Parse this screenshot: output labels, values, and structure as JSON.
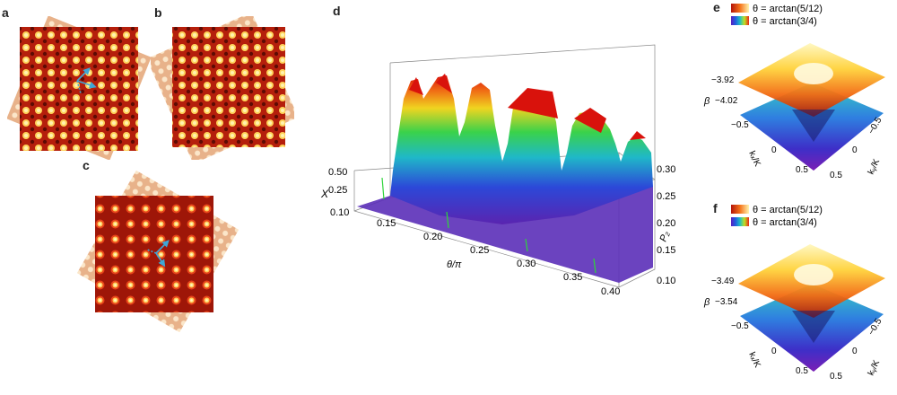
{
  "panels": {
    "a": "a",
    "b": "b",
    "c": "c",
    "d": "d",
    "e": "e",
    "f": "f"
  },
  "colors": {
    "lattice_dark": "#8a1408",
    "lattice_mid": "#d3280e",
    "lattice_bright": "#ffe07a",
    "tilted_sheet": "#e7b48f",
    "vector_arrow": "#3fa7d6"
  },
  "panel_d": {
    "x_axis_label": "θ/π",
    "x_ticks": [
      "0.10",
      "0.15",
      "0.20",
      "0.25",
      "0.30",
      "0.35",
      "0.40"
    ],
    "y_axis_label": "P₂",
    "y_ticks": [
      "0.10",
      "0.15",
      "0.20",
      "0.25",
      "0.30"
    ],
    "z_axis_label": "X",
    "z_ticks": [
      "0.50",
      "0.25"
    ]
  },
  "panel_e": {
    "legend": [
      "θ = arctan(5/12)",
      "θ = arctan(3/4)"
    ],
    "z_axis_label": "β",
    "z_ticks": [
      "−3.92",
      "−4.02"
    ],
    "kx_label": "kₓ/K",
    "ky_label": "kᵧ/K",
    "kx_ticks": [
      "−0.5",
      "0",
      "0.5"
    ],
    "ky_ticks": [
      "0.5",
      "0",
      "−0.5"
    ]
  },
  "panel_f": {
    "legend": [
      "θ = arctan(5/12)",
      "θ = arctan(3/4)"
    ],
    "z_axis_label": "β",
    "z_ticks": [
      "−3.49",
      "−3.54"
    ],
    "kx_label": "kₓ/K",
    "ky_label": "kᵧ/K",
    "kx_ticks": [
      "−0.5",
      "0",
      "0.5"
    ],
    "ky_ticks": [
      "0.5",
      "0",
      "−0.5"
    ]
  }
}
